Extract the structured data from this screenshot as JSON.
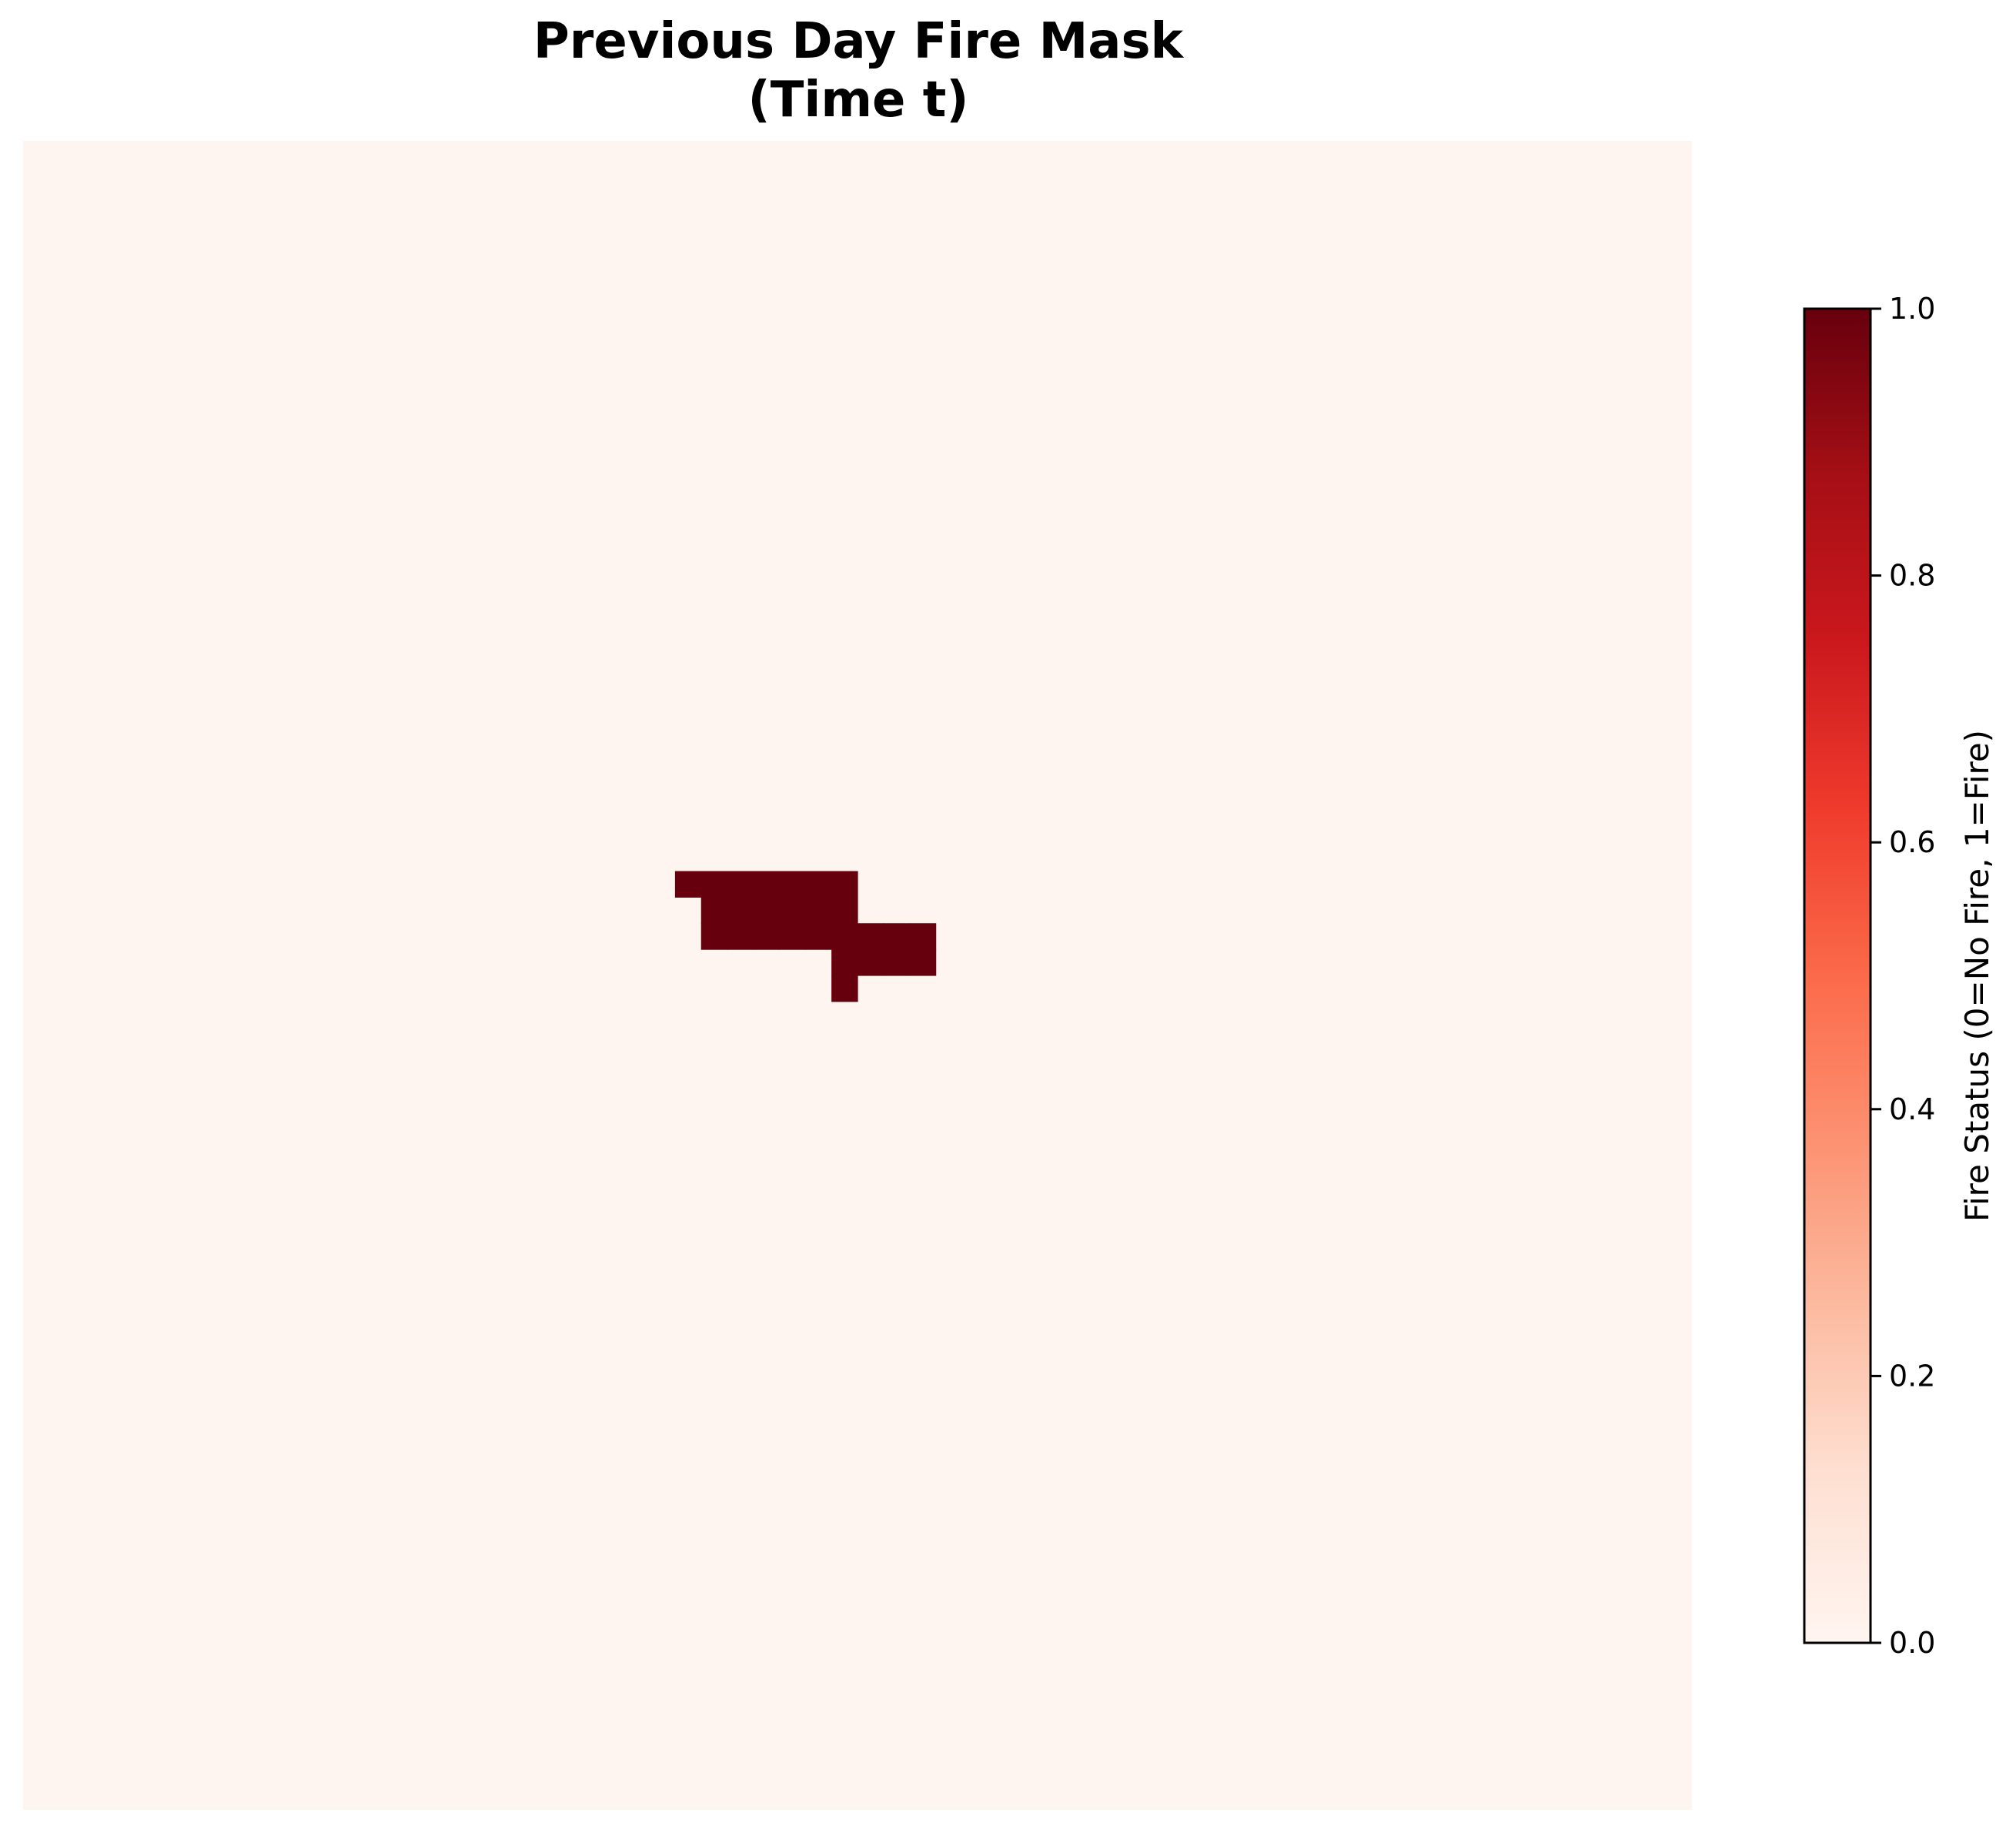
{
  "chart_data": {
    "type": "heatmap",
    "title_lines": [
      "Previous Day Fire Mask",
      "(Time t)"
    ],
    "grid": {
      "rows": 64,
      "cols": 64
    },
    "background_value": 0,
    "fire_cells": [
      {
        "row": 28,
        "cols": [
          25,
          26,
          27,
          28,
          29,
          30,
          31
        ]
      },
      {
        "row": 29,
        "cols": [
          26,
          27,
          28,
          29,
          30,
          31
        ]
      },
      {
        "row": 30,
        "cols": [
          26,
          27,
          28,
          29,
          30,
          31,
          32,
          33,
          34
        ]
      },
      {
        "row": 31,
        "cols": [
          31,
          32,
          33,
          34
        ]
      },
      {
        "row": 32,
        "cols": [
          31
        ]
      }
    ],
    "colormap": {
      "name": "Reds",
      "stops": [
        "#fff5f0",
        "#fee0d2",
        "#fcbba1",
        "#fc9272",
        "#fb6a4a",
        "#ef3b2c",
        "#cb181d",
        "#a50f15",
        "#67000d"
      ]
    },
    "axes_visible": false,
    "colorbar": {
      "label": "Fire Status (0=No Fire, 1=Fire)",
      "vmin": 0.0,
      "vmax": 1.0,
      "ticks": [
        "0.0",
        "0.2",
        "0.4",
        "0.6",
        "0.8",
        "1.0"
      ],
      "placement": "right"
    }
  }
}
